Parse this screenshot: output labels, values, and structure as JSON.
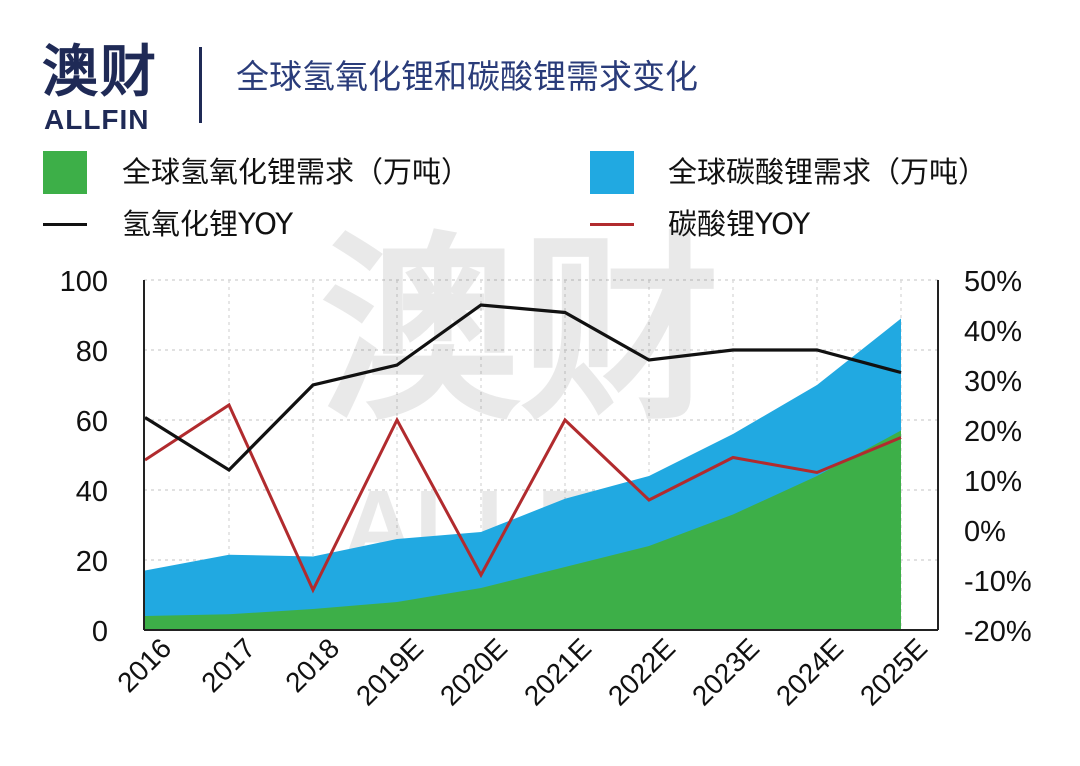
{
  "logo": {
    "cn": "澳财",
    "en": "ALLFIN"
  },
  "title": "全球氢氧化锂和碳酸锂需求变化",
  "watermark": {
    "cn": "澳财",
    "en": "ALLFIN"
  },
  "colors": {
    "lioh": "#3daf48",
    "li2co3": "#21a9e1",
    "lioh_yoy": "#111111",
    "li2co3_yoy": "#b12b2e",
    "brand": "#1f2a56"
  },
  "chart_data": {
    "type": "area",
    "title": "全球氢氧化锂和碳酸锂需求变化",
    "categories": [
      "2016",
      "2017",
      "2018",
      "2019E",
      "2020E",
      "2021E",
      "2022E",
      "2023E",
      "2024E",
      "2025E"
    ],
    "ylim_left": [
      0,
      100
    ],
    "left_ticks": [
      "0",
      "20",
      "40",
      "60",
      "80",
      "100"
    ],
    "ylim_right": [
      -20,
      50
    ],
    "right_ticks": [
      "-20%",
      "-10%",
      "0%",
      "10%",
      "20%",
      "30%",
      "40%",
      "50%"
    ],
    "series": [
      {
        "name": "全球碳酸锂需求（万吨）",
        "type": "area",
        "axis": "left",
        "values": [
          17,
          21.5,
          21,
          26,
          28,
          37.5,
          44,
          56,
          70,
          89
        ]
      },
      {
        "name": "全球氢氧化锂需求（万吨）",
        "type": "area",
        "axis": "left",
        "values": [
          4,
          4.5,
          6,
          8,
          12,
          18,
          24,
          33,
          44,
          57
        ]
      },
      {
        "name": "氢氧化锂YOY",
        "type": "line",
        "axis": "right",
        "values": [
          22.5,
          12,
          29,
          33,
          45,
          43.5,
          34,
          36,
          36,
          31.5
        ]
      },
      {
        "name": "碳酸锂YOY",
        "type": "line",
        "axis": "right",
        "values": [
          14,
          25,
          -12,
          22,
          -9,
          22,
          6,
          14.5,
          11.5,
          18.5
        ]
      }
    ],
    "legend": [
      "全球氢氧化锂需求（万吨）",
      "全球碳酸锂需求（万吨）",
      "氢氧化锂YOY",
      "碳酸锂YOY"
    ]
  }
}
